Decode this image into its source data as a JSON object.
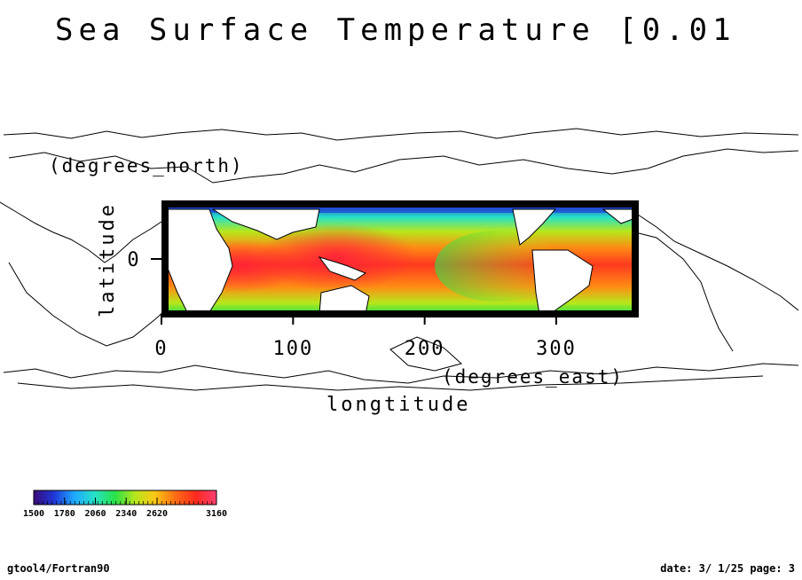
{
  "chart_data": {
    "type": "heatmap",
    "title": "Sea Surface Temperature [0.01",
    "xlabel": "longtitude",
    "xunit": "(degrees_east)",
    "ylabel": "latitude",
    "yunit": "(degrees_north)",
    "xlim": [
      0,
      360
    ],
    "ylim": [
      -30,
      30
    ],
    "x_ticks": [
      0,
      100,
      200,
      300
    ],
    "y_ticks": [
      0
    ],
    "colorbar": {
      "ticks": [
        "1500",
        "1780",
        "2060",
        "2340",
        "2620",
        "3160"
      ],
      "tick_values": [
        1500,
        1780,
        2060,
        2340,
        2620,
        3160
      ],
      "range": [
        1500,
        3160
      ],
      "colors": [
        "#3a0b7a",
        "#1f36d8",
        "#1ea9ff",
        "#27e2c8",
        "#29e24a",
        "#b7e71b",
        "#ffc415",
        "#ff6a14",
        "#ff2a1f",
        "#ff3f72"
      ]
    },
    "background_map": "world coastlines"
  },
  "footer": {
    "left": "gtool4/Fortran90",
    "right": "date: 3/ 1/25 page: 3"
  }
}
